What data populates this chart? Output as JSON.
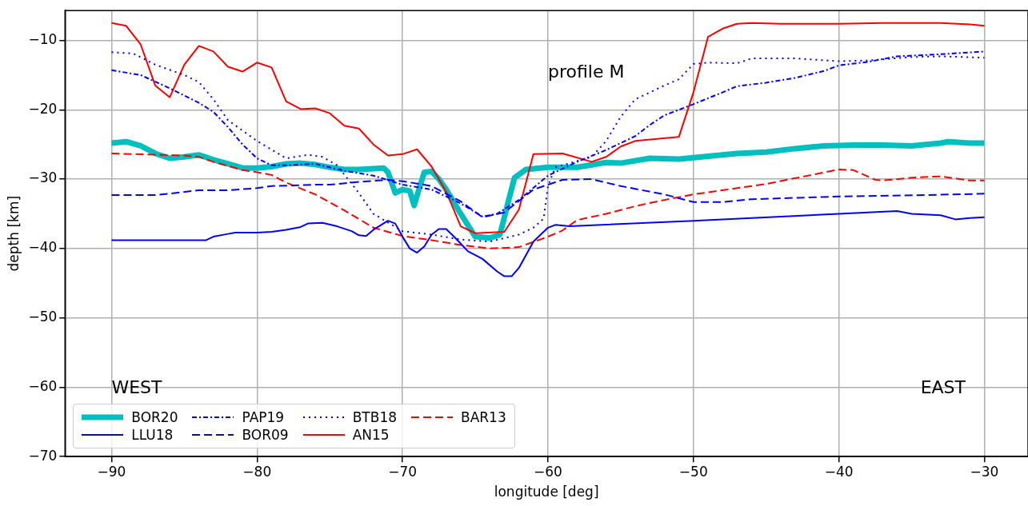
{
  "chart_data": {
    "type": "line",
    "xlabel": "longitude [deg]",
    "ylabel": "depth [km]",
    "annotations": [
      "profile M",
      "WEST",
      "EAST"
    ],
    "xlim": [
      -93.2,
      -27
    ],
    "xticks": [
      -90,
      -80,
      -70,
      -60,
      -50,
      -40,
      -30
    ],
    "ylim": [
      -70,
      -5.7
    ],
    "yticks": [
      -70,
      -60,
      -50,
      -40,
      -30,
      -20,
      -10
    ],
    "grid": true,
    "legend": "bottom left",
    "marker": "none",
    "series": [
      {
        "name": "BOR20",
        "color": "#00bfbf",
        "line_style": "solid",
        "x": [
          -90,
          -89,
          -88,
          -87,
          -86,
          -85,
          -84,
          -83,
          -82,
          -81,
          -80,
          -79,
          -78,
          -77,
          -76,
          -75,
          -74,
          -73,
          -72,
          -71.3,
          -71,
          -70.5,
          -70,
          -69.5,
          -69.2,
          -68.8,
          -68.5,
          -68,
          -67.5,
          -67,
          -66,
          -65,
          -64,
          -63.3,
          -62.7,
          -62.3,
          -61.5,
          -60,
          -58,
          -56,
          -55,
          -53,
          -51,
          -49,
          -47,
          -45,
          -43,
          -41,
          -39,
          -37,
          -35,
          -33,
          -32.5,
          -31,
          -30
        ],
        "values": [
          -24.8,
          -24.6,
          -25.2,
          -26.3,
          -27,
          -26.8,
          -26.5,
          -27.2,
          -27.8,
          -28.4,
          -28.4,
          -28.2,
          -27.8,
          -27.7,
          -27.9,
          -28.3,
          -28.6,
          -28.6,
          -28.5,
          -28.4,
          -29,
          -32,
          -31.5,
          -31.7,
          -33.8,
          -31,
          -29,
          -28.9,
          -30,
          -31.5,
          -35,
          -38.3,
          -38.5,
          -38,
          -33,
          -29.8,
          -28.6,
          -28.3,
          -28.3,
          -27.6,
          -27.7,
          -27,
          -27.1,
          -26.7,
          -26.3,
          -26.1,
          -25.6,
          -25.2,
          -25.1,
          -25.1,
          -25.2,
          -24.8,
          -24.6,
          -24.8,
          -24.8
        ]
      },
      {
        "name": "LLU18",
        "color": "#0000ff",
        "line_style": "solid",
        "x": [
          -90,
          -83.5,
          -83,
          -82,
          -81.5,
          -80,
          -79,
          -78,
          -77,
          -76.5,
          -75.5,
          -74.5,
          -73.5,
          -73,
          -72.5,
          -72,
          -71,
          -70.5,
          -70,
          -69.5,
          -69,
          -68.5,
          -68,
          -67.5,
          -67,
          -66.5,
          -66,
          -65.5,
          -64.5,
          -63.5,
          -63,
          -62.5,
          -62,
          -61,
          -60,
          -59.5,
          -58.5,
          -50,
          -40,
          -36,
          -35,
          -33,
          -32,
          -31,
          -30
        ],
        "values": [
          -38.8,
          -38.8,
          -38.3,
          -37.9,
          -37.7,
          -37.7,
          -37.6,
          -37.3,
          -36.9,
          -36.4,
          -36.3,
          -36.8,
          -37.5,
          -38.1,
          -38.2,
          -37.3,
          -36,
          -36.4,
          -38.3,
          -40,
          -40.6,
          -39.7,
          -38,
          -37.2,
          -37.2,
          -38.2,
          -39.3,
          -40.4,
          -41.5,
          -43.3,
          -44,
          -44,
          -42.8,
          -39,
          -37,
          -36.6,
          -36.8,
          -36,
          -35,
          -34.6,
          -35,
          -35.2,
          -35.8,
          -35.6,
          -35.5
        ]
      },
      {
        "name": "PAP19",
        "color": "#0000ff",
        "line_style": "dashdot",
        "x": [
          -90,
          -88,
          -86,
          -84,
          -83,
          -82,
          -81,
          -80,
          -79,
          -78,
          -76,
          -74,
          -72,
          -70,
          -68,
          -66,
          -64.5,
          -63.5,
          -62,
          -60,
          -58,
          -56,
          -54,
          -53,
          -52,
          -50,
          -48,
          -47,
          -45,
          -43,
          -41,
          -40,
          -38,
          -36,
          -33,
          -30
        ],
        "values": [
          -14.3,
          -15,
          -16.9,
          -19,
          -20.3,
          -22.5,
          -25,
          -27,
          -28,
          -28,
          -27.8,
          -28.8,
          -29.5,
          -30.8,
          -31.5,
          -33.5,
          -35.4,
          -35,
          -33,
          -29.5,
          -27.5,
          -25.8,
          -23.8,
          -22.2,
          -20.8,
          -19.2,
          -17.5,
          -16.6,
          -16.1,
          -15.4,
          -14.4,
          -13.6,
          -13.1,
          -12.3,
          -12,
          -11.6
        ]
      },
      {
        "name": "BOR09",
        "color": "#0000ff",
        "line_style": "dashed",
        "x": [
          -90,
          -87,
          -86,
          -84,
          -82,
          -80,
          -79,
          -76,
          -75,
          -73,
          -71,
          -70,
          -68,
          -66,
          -64.5,
          -63,
          -61,
          -59,
          -57,
          -55,
          -52,
          -50,
          -48,
          -46,
          -40,
          -34,
          -30
        ],
        "values": [
          -32.3,
          -32.3,
          -32.1,
          -31.6,
          -31.6,
          -31.3,
          -31,
          -30.8,
          -30.8,
          -30.4,
          -30.1,
          -30.3,
          -31,
          -33.2,
          -35.5,
          -34.8,
          -31.5,
          -30.1,
          -30,
          -31,
          -32.2,
          -33.3,
          -33.3,
          -32.9,
          -32.5,
          -32.3,
          -32.1
        ]
      },
      {
        "name": "BTB18",
        "color": "#0000ff",
        "line_style": "dotted",
        "x": [
          -90,
          -88.5,
          -87,
          -85,
          -84,
          -83,
          -82,
          -80,
          -78,
          -76.5,
          -75.5,
          -74.5,
          -73,
          -72,
          -70,
          -68,
          -66,
          -64,
          -62,
          -61,
          -60.3,
          -60,
          -59.5,
          -57,
          -56,
          -55,
          -54,
          -52,
          -51,
          -50,
          -49,
          -47,
          -46,
          -43,
          -40,
          -38,
          -35,
          -33,
          -30
        ],
        "values": [
          -11.7,
          -11.9,
          -13.5,
          -15,
          -16,
          -18.5,
          -21.5,
          -24.5,
          -27,
          -26.5,
          -26.8,
          -28,
          -32,
          -35,
          -37.5,
          -38,
          -38.7,
          -39,
          -38,
          -37,
          -35.7,
          -31,
          -28.3,
          -26.8,
          -24.5,
          -21,
          -18.5,
          -16.5,
          -15.6,
          -13.4,
          -13.2,
          -13.3,
          -12.6,
          -12.6,
          -13,
          -12.9,
          -12.4,
          -12.3,
          -12.5
        ]
      },
      {
        "name": "AN15",
        "color": "#ff0000",
        "line_style": "solid",
        "x": [
          -90,
          -89,
          -88,
          -87,
          -86,
          -85,
          -84,
          -83,
          -82,
          -81,
          -80,
          -79,
          -78,
          -77,
          -76,
          -75,
          -74,
          -73,
          -72,
          -71,
          -70,
          -69,
          -68,
          -67,
          -66,
          -65,
          -63,
          -62,
          -61,
          -59,
          -57,
          -56,
          -55,
          -54,
          -51,
          -50,
          -49,
          -48,
          -47,
          -46,
          -44,
          -40,
          -37,
          -33,
          -31,
          -30
        ],
        "values": [
          -7.5,
          -7.9,
          -10.6,
          -16.5,
          -18.2,
          -13.5,
          -10.8,
          -11.6,
          -13.8,
          -14.5,
          -13.2,
          -13.9,
          -18.8,
          -19.9,
          -19.8,
          -20.5,
          -22.3,
          -22.7,
          -25,
          -26.6,
          -26.4,
          -25.7,
          -28.2,
          -31.8,
          -36.8,
          -37.8,
          -37.6,
          -34.4,
          -26.4,
          -26.3,
          -27.5,
          -26.8,
          -25.3,
          -24.5,
          -23.9,
          -17.5,
          -9.5,
          -8.3,
          -7.6,
          -7.5,
          -7.6,
          -7.6,
          -7.5,
          -7.5,
          -7.7,
          -7.9
        ]
      },
      {
        "name": "BAR13",
        "color": "#ff0000",
        "line_style": "dashed",
        "x": [
          -90,
          -85,
          -84,
          -83,
          -81,
          -80,
          -79,
          -78,
          -76,
          -74,
          -72,
          -70,
          -68,
          -66,
          -64,
          -62,
          -60,
          -59,
          -58,
          -56,
          -54,
          -52,
          -50,
          -45,
          -40,
          -39,
          -37.5,
          -37,
          -35,
          -33,
          -31,
          -30
        ],
        "values": [
          -26.3,
          -26.6,
          -26.8,
          -27.5,
          -28.7,
          -29,
          -29.4,
          -30.5,
          -32.2,
          -34.5,
          -37,
          -38.2,
          -38.8,
          -39.5,
          -40,
          -39.8,
          -38.3,
          -37.4,
          -35.9,
          -35,
          -33.9,
          -33,
          -32.2,
          -30.7,
          -28.6,
          -28.7,
          -30.1,
          -30.2,
          -29.8,
          -29.6,
          -30.2,
          -30.2
        ]
      }
    ]
  }
}
